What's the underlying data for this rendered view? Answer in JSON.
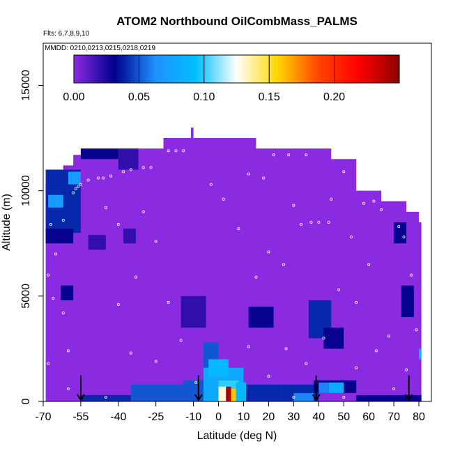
{
  "chart_data": {
    "type": "heatmap",
    "title": "ATOM2 Northbound OilCombMass_PALMS",
    "subtitle_flights": "Flts: 6,7,8,9,10",
    "subtitle_dates": "MMDD: 0210,0213,0215,0218,0219",
    "xlabel": "Latitude (deg N)",
    "ylabel": "Altitude (m)",
    "xlim": [
      -70,
      85
    ],
    "ylim": [
      0,
      17000
    ],
    "x_ticks": [
      -70,
      -55,
      -40,
      -25,
      -10,
      0,
      10,
      20,
      30,
      40,
      50,
      60,
      70,
      80
    ],
    "x_tick_labels": [
      "-70",
      "-55",
      "-40",
      "-25",
      "-10",
      "0",
      "10",
      "20",
      "30",
      "40",
      "50",
      "60",
      "70",
      "80"
    ],
    "y_ticks": [
      0,
      5000,
      10000,
      15000
    ],
    "y_tick_labels": [
      "0",
      "5000",
      "10000",
      "15000"
    ],
    "colorbar": {
      "range": [
        0,
        0.25
      ],
      "ticks": [
        0.0,
        0.05,
        0.1,
        0.15,
        0.2
      ],
      "tick_labels": [
        "0.00",
        "0.05",
        "0.10",
        "0.15",
        "0.20"
      ],
      "colors": [
        "#8a2be2",
        "#00008b",
        "#1e90ff",
        "#00bfff",
        "#ffffff",
        "#ffd700",
        "#ff4500",
        "#ff0000",
        "#8b0000"
      ]
    },
    "data_ceiling": [
      {
        "lat": -69,
        "alt": 10300
      },
      {
        "lat": -67,
        "alt": 10800
      },
      {
        "lat": -62,
        "alt": 11200
      },
      {
        "lat": -58,
        "alt": 11700
      },
      {
        "lat": -55,
        "alt": 12000
      },
      {
        "lat": -32,
        "alt": 12000
      },
      {
        "lat": -22,
        "alt": 12500
      },
      {
        "lat": -12,
        "alt": 12500
      },
      {
        "lat": -11,
        "alt": 13000
      },
      {
        "lat": -10,
        "alt": 12500
      },
      {
        "lat": 10,
        "alt": 12500
      },
      {
        "lat": 15,
        "alt": 12000
      },
      {
        "lat": 35,
        "alt": 12000
      },
      {
        "lat": 45,
        "alt": 11500
      },
      {
        "lat": 55,
        "alt": 10000
      },
      {
        "lat": 65,
        "alt": 9500
      },
      {
        "lat": 75,
        "alt": 9000
      },
      {
        "lat": 80,
        "alt": 8500
      },
      {
        "lat": 81,
        "alt": 7500
      }
    ],
    "background_value": 0.0,
    "cells": [
      {
        "lat0": -69,
        "lat1": -55,
        "alt0": 8000,
        "alt1": 11000,
        "value": 0.04
      },
      {
        "lat0": -68,
        "lat1": -62,
        "alt0": 9200,
        "alt1": 9800,
        "value": 0.07
      },
      {
        "lat0": -60,
        "lat1": -55,
        "alt0": 10300,
        "alt1": 10900,
        "value": 0.07
      },
      {
        "lat0": -69,
        "lat1": -58,
        "alt0": 7500,
        "alt1": 8200,
        "value": 0.03
      },
      {
        "lat0": -63,
        "lat1": -58,
        "alt0": 4800,
        "alt1": 5500,
        "value": 0.03
      },
      {
        "lat0": -55,
        "lat1": -40,
        "alt0": 11500,
        "alt1": 12000,
        "value": 0.03
      },
      {
        "lat0": -40,
        "lat1": -32,
        "alt0": 11000,
        "alt1": 12000,
        "value": 0.02
      },
      {
        "lat0": -52,
        "lat1": -45,
        "alt0": 7200,
        "alt1": 7900,
        "value": 0.02
      },
      {
        "lat0": -38,
        "lat1": -33,
        "alt0": 7500,
        "alt1": 8200,
        "value": 0.02
      },
      {
        "lat0": -15,
        "lat1": -5,
        "alt0": 3500,
        "alt1": 5000,
        "value": 0.02
      },
      {
        "lat0": 12,
        "lat1": 22,
        "alt0": 3500,
        "alt1": 4500,
        "value": 0.03
      },
      {
        "lat0": 36,
        "lat1": 45,
        "alt0": 3000,
        "alt1": 4800,
        "value": 0.04
      },
      {
        "lat0": 42,
        "lat1": 50,
        "alt0": 2500,
        "alt1": 3500,
        "value": 0.03
      },
      {
        "lat0": 70,
        "lat1": 75,
        "alt0": 7500,
        "alt1": 8500,
        "value": 0.03
      },
      {
        "lat0": 73,
        "lat1": 78,
        "alt0": 4000,
        "alt1": 5500,
        "value": 0.03
      },
      {
        "lat0": 80,
        "lat1": 81,
        "alt0": 2000,
        "alt1": 2500,
        "value": 0.09
      },
      {
        "lat0": -55,
        "lat1": -35,
        "alt0": 0,
        "alt1": 300,
        "value": 0.04
      },
      {
        "lat0": -35,
        "lat1": -10,
        "alt0": 0,
        "alt1": 800,
        "value": 0.05
      },
      {
        "lat0": -14,
        "lat1": -6,
        "alt0": 0,
        "alt1": 1000,
        "value": 0.05
      },
      {
        "lat0": -6,
        "lat1": 0,
        "alt0": 1000,
        "alt1": 2800,
        "value": 0.05
      },
      {
        "lat0": -6,
        "lat1": 10,
        "alt0": 0,
        "alt1": 1600,
        "value": 0.08
      },
      {
        "lat0": -4,
        "lat1": 4,
        "alt0": 1200,
        "alt1": 2000,
        "value": 0.09
      },
      {
        "lat0": 0,
        "lat1": 8,
        "alt0": 600,
        "alt1": 1000,
        "value": 0.1
      },
      {
        "lat0": 0,
        "lat1": 3,
        "alt0": 0,
        "alt1": 700,
        "value": 0.13
      },
      {
        "lat0": 3,
        "lat1": 5,
        "alt0": 0,
        "alt1": 700,
        "value": 0.24
      },
      {
        "lat0": 5,
        "lat1": 7,
        "alt0": 0,
        "alt1": 600,
        "value": 0.16
      },
      {
        "lat0": 7,
        "lat1": 11,
        "alt0": 0,
        "alt1": 900,
        "value": 0.09
      },
      {
        "lat0": 11,
        "lat1": 25,
        "alt0": 0,
        "alt1": 800,
        "value": 0.04
      },
      {
        "lat0": 25,
        "lat1": 40,
        "alt0": 0,
        "alt1": 800,
        "value": 0.04
      },
      {
        "lat0": 30,
        "lat1": 38,
        "alt0": 0,
        "alt1": 400,
        "value": 0.06
      },
      {
        "lat0": 38,
        "lat1": 55,
        "alt0": 400,
        "alt1": 1000,
        "value": 0.03
      },
      {
        "lat0": 44,
        "lat1": 50,
        "alt0": 400,
        "alt1": 900,
        "value": 0.08
      },
      {
        "lat0": 40,
        "lat1": 44,
        "alt0": 400,
        "alt1": 900,
        "value": 0.06
      },
      {
        "lat0": 55,
        "lat1": 81,
        "alt0": 0,
        "alt1": 300,
        "value": 0.03
      }
    ],
    "sample_points": [
      {
        "lat": -67,
        "alt": 8400
      },
      {
        "lat": -62,
        "alt": 8600
      },
      {
        "lat": -65,
        "alt": 7000
      },
      {
        "lat": -68,
        "alt": 6000
      },
      {
        "lat": -66,
        "alt": 4900
      },
      {
        "lat": -62,
        "alt": 4200
      },
      {
        "lat": -68,
        "alt": 1800
      },
      {
        "lat": -60,
        "alt": 2400
      },
      {
        "lat": -58,
        "alt": 9900
      },
      {
        "lat": -57,
        "alt": 10100
      },
      {
        "lat": -56,
        "alt": 10200
      },
      {
        "lat": -55,
        "alt": 10300
      },
      {
        "lat": -52,
        "alt": 10500
      },
      {
        "lat": -48,
        "alt": 10600
      },
      {
        "lat": -46,
        "alt": 10600
      },
      {
        "lat": -43,
        "alt": 10700
      },
      {
        "lat": -38,
        "alt": 10900
      },
      {
        "lat": -35,
        "alt": 11000
      },
      {
        "lat": -30,
        "alt": 11100
      },
      {
        "lat": -27,
        "alt": 11100
      },
      {
        "lat": -20,
        "alt": 11900
      },
      {
        "lat": -17,
        "alt": 11900
      },
      {
        "lat": -14,
        "alt": 11900
      },
      {
        "lat": -45,
        "alt": 9200
      },
      {
        "lat": -40,
        "alt": 8400
      },
      {
        "lat": -30,
        "alt": 9000
      },
      {
        "lat": -25,
        "alt": 7600
      },
      {
        "lat": -33,
        "alt": 5900
      },
      {
        "lat": -40,
        "alt": 4600
      },
      {
        "lat": -20,
        "alt": 4700
      },
      {
        "lat": -35,
        "alt": 2300
      },
      {
        "lat": -25,
        "alt": 1900
      },
      {
        "lat": -15,
        "alt": 2900
      },
      {
        "lat": -9,
        "alt": 900
      },
      {
        "lat": -3,
        "alt": 10300
      },
      {
        "lat": 2,
        "alt": 9600
      },
      {
        "lat": 8,
        "alt": 8200
      },
      {
        "lat": 12,
        "alt": 10800
      },
      {
        "lat": 18,
        "alt": 10600
      },
      {
        "lat": 22,
        "alt": 11700
      },
      {
        "lat": 28,
        "alt": 11700
      },
      {
        "lat": 35,
        "alt": 11700
      },
      {
        "lat": 30,
        "alt": 9300
      },
      {
        "lat": 20,
        "alt": 7100
      },
      {
        "lat": 15,
        "alt": 5900
      },
      {
        "lat": 26,
        "alt": 6500
      },
      {
        "lat": 33,
        "alt": 8400
      },
      {
        "lat": 37,
        "alt": 8500
      },
      {
        "lat": 40,
        "alt": 8500
      },
      {
        "lat": 44,
        "alt": 8500
      },
      {
        "lat": 45,
        "alt": 9600
      },
      {
        "lat": 50,
        "alt": 10900
      },
      {
        "lat": 53,
        "alt": 7800
      },
      {
        "lat": 58,
        "alt": 9400
      },
      {
        "lat": 62,
        "alt": 9500
      },
      {
        "lat": 65,
        "alt": 9100
      },
      {
        "lat": 60,
        "alt": 6500
      },
      {
        "lat": 55,
        "alt": 4700
      },
      {
        "lat": 48,
        "alt": 5300
      },
      {
        "lat": 42,
        "alt": 3000
      },
      {
        "lat": 35,
        "alt": 1800
      },
      {
        "lat": 27,
        "alt": 2500
      },
      {
        "lat": 20,
        "alt": 1200
      },
      {
        "lat": 12,
        "alt": 2600
      },
      {
        "lat": 55,
        "alt": 1600
      },
      {
        "lat": 63,
        "alt": 2400
      },
      {
        "lat": 68,
        "alt": 3100
      },
      {
        "lat": 72,
        "alt": 8300
      },
      {
        "lat": 74,
        "alt": 7800
      },
      {
        "lat": 77,
        "alt": 6000
      },
      {
        "lat": 79,
        "alt": 3400
      },
      {
        "lat": 75,
        "alt": 1500
      },
      {
        "lat": 70,
        "alt": 600
      },
      {
        "lat": 50,
        "alt": 200
      },
      {
        "lat": 30,
        "alt": 200
      },
      {
        "lat": -45,
        "alt": 200
      },
      {
        "lat": -60,
        "alt": 600
      }
    ],
    "arrows": [
      {
        "lat": -55,
        "alt_top": 700,
        "alt_bottom": 0
      },
      {
        "lat": -8,
        "alt_top": 700,
        "alt_bottom": 0
      },
      {
        "lat": 39,
        "alt_top": 700,
        "alt_bottom": 0
      },
      {
        "lat": 76,
        "alt_top": 700,
        "alt_bottom": 0
      }
    ]
  }
}
